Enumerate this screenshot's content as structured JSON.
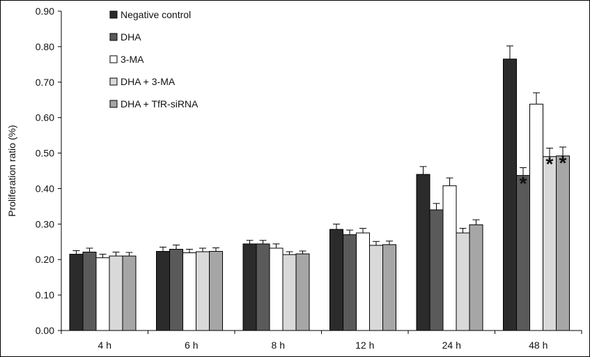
{
  "chart_data": {
    "type": "bar",
    "ylabel": "Proliferation ratio (%)",
    "xlabel": "",
    "ylim": [
      0,
      0.9
    ],
    "yticks": [
      "0.00",
      "0.10",
      "0.20",
      "0.30",
      "0.40",
      "0.50",
      "0.60",
      "0.70",
      "0.80",
      "0.90"
    ],
    "categories": [
      "4 h",
      "6 h",
      "8 h",
      "12 h",
      "24 h",
      "48 h"
    ],
    "legend_position": "top-left",
    "grid": false,
    "series": [
      {
        "name": "Negative control",
        "color": "#2b2b2b",
        "values": [
          0.215,
          0.223,
          0.244,
          0.285,
          0.44,
          0.765
        ],
        "errors": [
          0.01,
          0.012,
          0.01,
          0.015,
          0.022,
          0.037
        ]
      },
      {
        "name": "DHA",
        "color": "#5a5a5a",
        "values": [
          0.221,
          0.229,
          0.244,
          0.27,
          0.34,
          0.437
        ],
        "errors": [
          0.011,
          0.012,
          0.01,
          0.013,
          0.018,
          0.022
        ]
      },
      {
        "name": "3-MA",
        "color": "#ffffff",
        "values": [
          0.205,
          0.219,
          0.232,
          0.275,
          0.408,
          0.638
        ],
        "errors": [
          0.01,
          0.01,
          0.012,
          0.013,
          0.022,
          0.032
        ]
      },
      {
        "name": "DHA + 3-MA",
        "color": "#d9d9d9",
        "values": [
          0.21,
          0.222,
          0.214,
          0.24,
          0.275,
          0.49
        ],
        "errors": [
          0.011,
          0.01,
          0.008,
          0.011,
          0.013,
          0.024
        ]
      },
      {
        "name": "DHA + TfR-siRNA",
        "color": "#a6a6a6",
        "values": [
          0.21,
          0.223,
          0.216,
          0.242,
          0.298,
          0.492
        ],
        "errors": [
          0.01,
          0.01,
          0.008,
          0.01,
          0.014,
          0.025
        ]
      }
    ],
    "annotations": [
      {
        "text": "*",
        "category": "48 h",
        "series": "DHA"
      },
      {
        "text": "*",
        "category": "48 h",
        "series": "DHA + 3-MA"
      },
      {
        "text": "*",
        "category": "48 h",
        "series": "DHA + TfR-siRNA"
      }
    ]
  }
}
